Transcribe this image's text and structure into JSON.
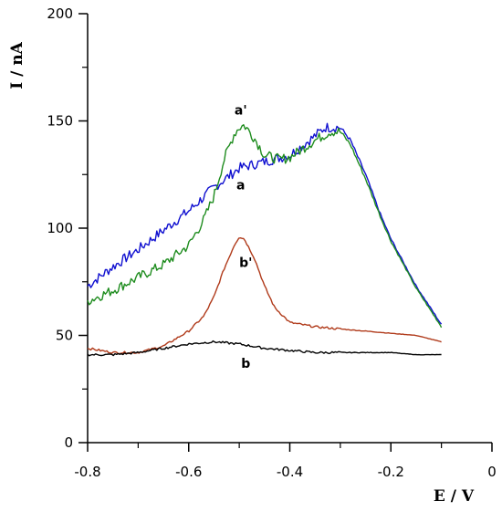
{
  "chart_data": {
    "type": "line",
    "xlabel": "E / V",
    "ylabel": "I / nA",
    "xlim": [
      -0.8,
      0
    ],
    "ylim": [
      0,
      200
    ],
    "xticks": [
      -0.8,
      -0.6,
      -0.4,
      -0.2,
      0
    ],
    "xtick_labels": [
      "-0.8",
      "-0.6",
      "-0.4",
      "-0.2",
      "0"
    ],
    "yticks": [
      0,
      50,
      100,
      150,
      200
    ],
    "ytick_labels": [
      "0",
      "50",
      "100",
      "150",
      "200"
    ],
    "grid": false,
    "series": [
      {
        "name": "a",
        "color": "#1010d0",
        "x": [
          -0.8,
          -0.75,
          -0.7,
          -0.65,
          -0.6,
          -0.55,
          -0.5,
          -0.45,
          -0.4,
          -0.35,
          -0.33,
          -0.3,
          -0.28,
          -0.25,
          -0.22,
          -0.2,
          -0.15,
          -0.1
        ],
        "y": [
          73,
          82,
          90,
          99,
          108,
          119,
          128,
          131,
          134,
          143,
          147,
          147,
          141,
          125,
          106,
          95,
          73,
          55
        ]
      },
      {
        "name": "a'",
        "color": "#1e8c1e",
        "x": [
          -0.8,
          -0.75,
          -0.7,
          -0.65,
          -0.6,
          -0.57,
          -0.55,
          -0.53,
          -0.51,
          -0.5,
          -0.49,
          -0.47,
          -0.45,
          -0.42,
          -0.4,
          -0.35,
          -0.32,
          -0.3,
          -0.28,
          -0.25,
          -0.22,
          -0.2,
          -0.15,
          -0.1
        ],
        "y": [
          66,
          71,
          77,
          83,
          92,
          104,
          115,
          132,
          144,
          147,
          148,
          142,
          134,
          132,
          133,
          141,
          145,
          145,
          139,
          123,
          105,
          94,
          72,
          54
        ]
      },
      {
        "name": "b'",
        "color": "#b03a1a",
        "x": [
          -0.8,
          -0.75,
          -0.7,
          -0.65,
          -0.6,
          -0.57,
          -0.55,
          -0.53,
          -0.51,
          -0.5,
          -0.49,
          -0.47,
          -0.45,
          -0.43,
          -0.4,
          -0.35,
          -0.3,
          -0.25,
          -0.2,
          -0.15,
          -0.1
        ],
        "y": [
          44,
          42,
          42,
          45,
          52,
          59,
          68,
          81,
          92,
          96,
          95,
          86,
          73,
          63,
          56,
          54,
          53,
          52,
          51,
          50,
          47
        ]
      },
      {
        "name": "b",
        "color": "#000000",
        "x": [
          -0.8,
          -0.75,
          -0.7,
          -0.65,
          -0.6,
          -0.55,
          -0.5,
          -0.45,
          -0.4,
          -0.35,
          -0.3,
          -0.25,
          -0.2,
          -0.15,
          -0.1
        ],
        "y": [
          41,
          41,
          42,
          44,
          46,
          47,
          46,
          44,
          43,
          42,
          42,
          42,
          42,
          41,
          41
        ]
      }
    ],
    "annotations": [
      {
        "text": "a'",
        "x": -0.497,
        "y": 153
      },
      {
        "text": "a",
        "x": -0.497,
        "y": 118
      },
      {
        "text": "b'",
        "x": -0.487,
        "y": 82
      },
      {
        "text": "b",
        "x": -0.487,
        "y": 35
      }
    ]
  }
}
